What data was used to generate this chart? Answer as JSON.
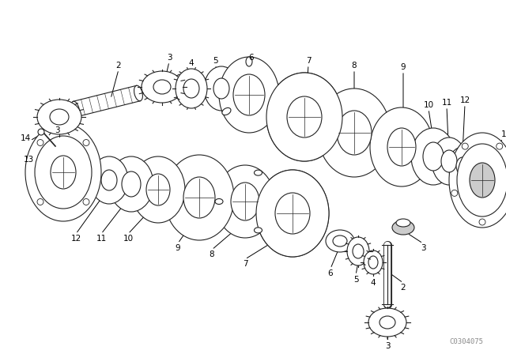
{
  "background_color": "#ffffff",
  "line_color": "#222222",
  "label_color": "#000000",
  "watermark": "C0304075",
  "fig_width": 6.4,
  "fig_height": 4.48,
  "dpi": 100,
  "lw": 0.8,
  "fontsize": 7.5
}
